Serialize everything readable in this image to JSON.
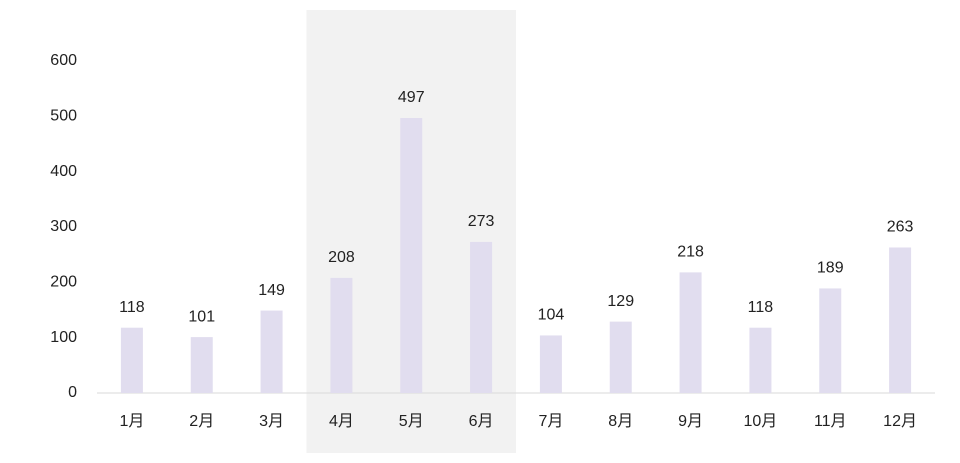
{
  "chart_data": {
    "type": "bar",
    "categories": [
      "1月",
      "2月",
      "3月",
      "4月",
      "5月",
      "6月",
      "7月",
      "8月",
      "9月",
      "10月",
      "11月",
      "12月"
    ],
    "values": [
      118,
      101,
      149,
      208,
      497,
      273,
      104,
      129,
      218,
      118,
      189,
      263
    ],
    "color": "#e1ddef",
    "ylim": [
      0,
      600
    ],
    "yticks": [
      0,
      100,
      200,
      300,
      400,
      500,
      600
    ],
    "grid": false,
    "highlight_categories": [
      3,
      4,
      5
    ],
    "highlight_color": "#f2f2f2"
  }
}
